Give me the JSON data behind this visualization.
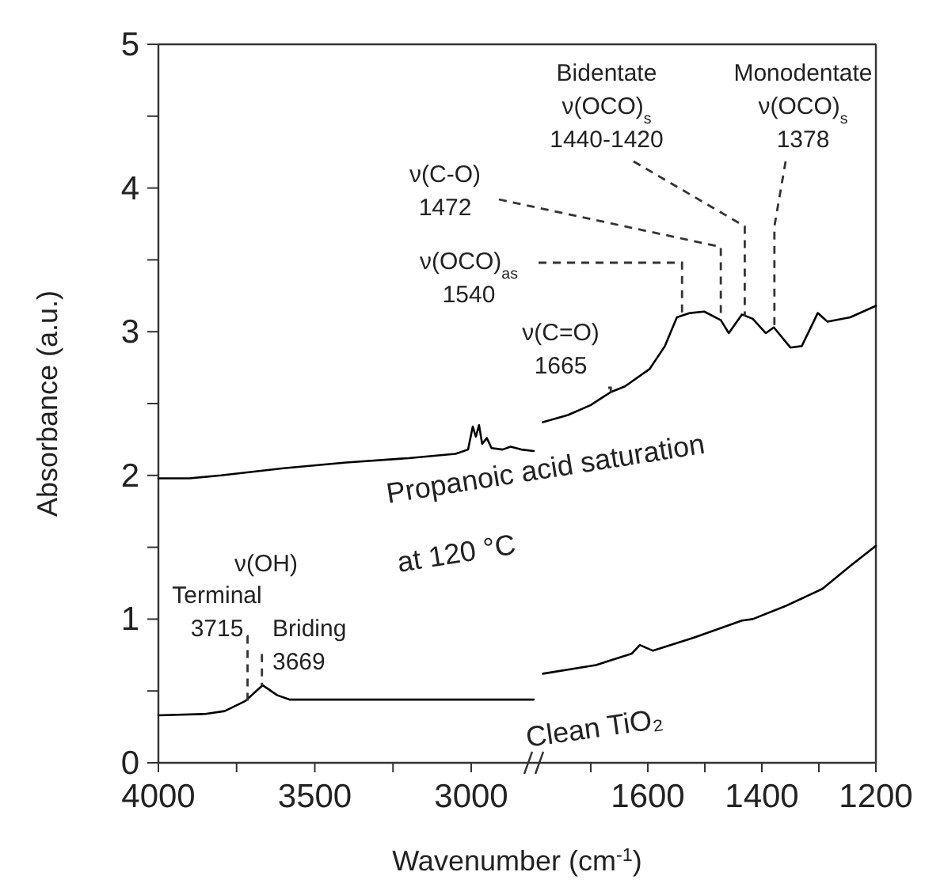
{
  "chart_data": [
    {
      "type": "line",
      "ylabel": "Absorbance (a.u.)",
      "xlabel": "Wavenumber (cm$^{-1}$)",
      "xlim": [
        4000,
        2800
      ],
      "ylim": [
        0,
        5
      ],
      "xticks": [
        4000,
        {
          "value": 3750,
          "label": null
        },
        3500,
        {
          "value": 3250,
          "label": null
        },
        3000
      ],
      "yticks": [
        0,
        {
          "value": 0.5,
          "label": null
        },
        1,
        {
          "value": 1.5,
          "label": null
        },
        2,
        {
          "value": 2.5,
          "label": null
        },
        3,
        {
          "value": 3.5,
          "label": null
        },
        4,
        {
          "value": 4.5,
          "label": null
        },
        5
      ],
      "series": [
        {
          "name": "Propanoic acid saturation\nat 120 °C",
          "color": "#000000",
          "x": [
            4000,
            3900,
            3800,
            3600,
            3400,
            3200,
            3050,
            3010,
            2995,
            2985,
            2975,
            2965,
            2950,
            2935,
            2900,
            2874,
            2840,
            2800
          ],
          "values": [
            1.98,
            1.98,
            2.0,
            2.05,
            2.09,
            2.12,
            2.15,
            2.18,
            2.34,
            2.27,
            2.35,
            2.22,
            2.26,
            2.19,
            2.18,
            2.2,
            2.18,
            2.17
          ]
        },
        {
          "name": "Clean TiO₂",
          "color": "#000000",
          "x": [
            4000,
            3850,
            3788,
            3722,
            3667,
            3620,
            3581,
            3500,
            3200,
            2800
          ],
          "values": [
            0.33,
            0.34,
            0.36,
            0.43,
            0.54,
            0.47,
            0.44,
            0.44,
            0.44,
            0.44
          ]
        }
      ],
      "annotations": [
        "ν(OH)",
        {
          "text": "Terminal\n3715",
          "x": 3715,
          "y": 0.43
        },
        {
          "text": "Briding\n3669",
          "x": 3669,
          "y": 0.54
        }
      ]
    },
    {
      "type": "line",
      "xlim": [
        1800,
        1200
      ],
      "ylim": [
        0,
        5
      ],
      "tick_labels": "x",
      "xticks": [
        {
          "value": 1700,
          "label": null
        },
        1600,
        {
          "value": 1500,
          "label": null
        },
        1400,
        {
          "value": 1300,
          "label": null
        },
        1200
      ],
      "series": [
        {
          "color": "#000000",
          "x": [
            1784,
            1740,
            1700,
            1665,
            1640,
            1597,
            1570,
            1549,
            1526,
            1501,
            1472,
            1458,
            1435,
            1416,
            1393,
            1379,
            1350,
            1330,
            1302,
            1285,
            1245,
            1200
          ],
          "values": [
            2.37,
            2.42,
            2.49,
            2.58,
            2.62,
            2.74,
            2.9,
            3.1,
            3.13,
            3.14,
            3.08,
            2.99,
            3.12,
            3.09,
            2.99,
            3.03,
            2.89,
            2.9,
            3.13,
            3.07,
            3.1,
            3.18
          ]
        },
        {
          "color": "#000000",
          "x": [
            1784,
            1691,
            1628,
            1614,
            1591,
            1520,
            1435,
            1416,
            1359,
            1294,
            1245,
            1200
          ],
          "values": [
            0.62,
            0.68,
            0.76,
            0.82,
            0.78,
            0.87,
            0.99,
            1.0,
            1.09,
            1.21,
            1.37,
            1.51
          ]
        }
      ],
      "annotations": [
        {
          "text": "Bidentate\nν(OCO)$_{s}$\n1440-1420",
          "x": 1430,
          "y": 3.11
        },
        {
          "text": "Monodentate\nν(OCO)$_{s}$\n1378",
          "x": 1378,
          "y": 3.03
        },
        {
          "text": "ν(C-O)\n1472",
          "x": 1472,
          "y": 3.08
        },
        {
          "text": "ν(OCO)$_{as}$\n1540",
          "x": 1540,
          "y": 3.1
        },
        {
          "text": "ν(C=O)\n1665",
          "x": 1665,
          "y": 2.58
        }
      ]
    }
  ]
}
